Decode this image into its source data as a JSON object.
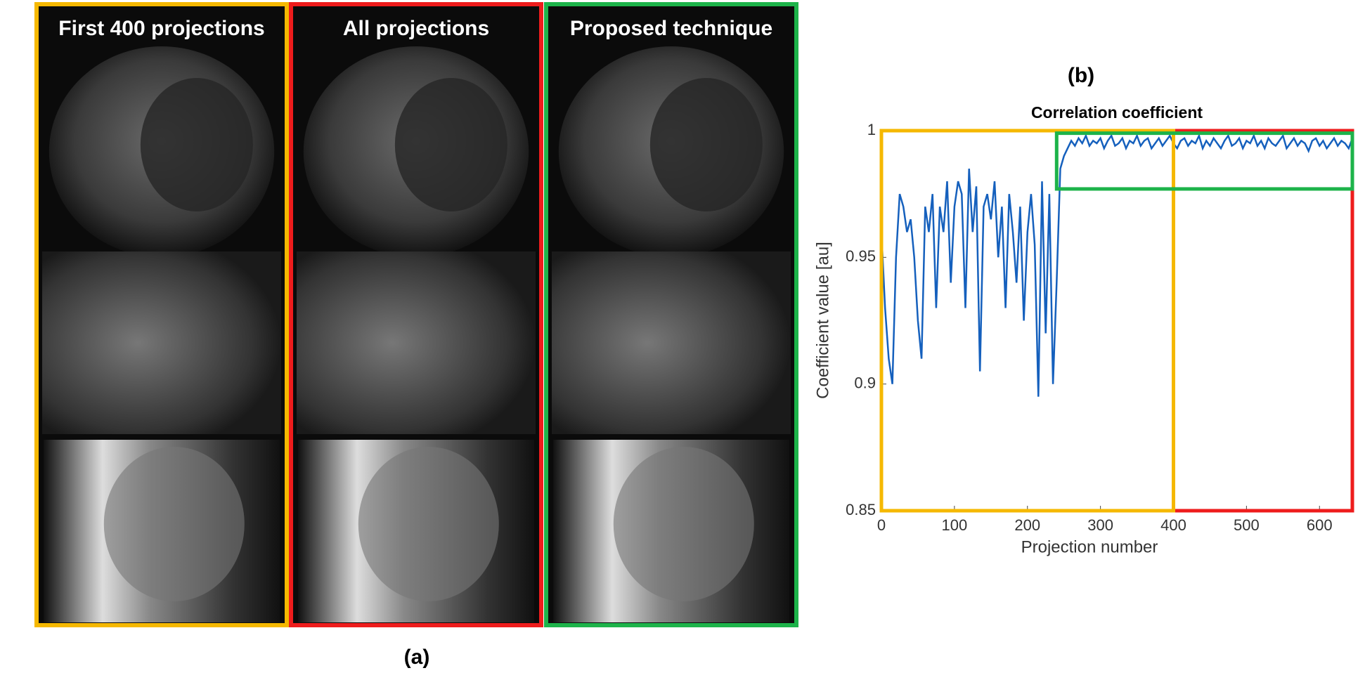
{
  "panels": [
    {
      "title": "First 400 projections",
      "color": "#f5b800"
    },
    {
      "title": "All projections",
      "color": "#ee1c1c"
    },
    {
      "title": "Proposed technique",
      "color": "#1db34a"
    }
  ],
  "label_a": "(a)",
  "label_b": "(b)",
  "chart_data": {
    "type": "line",
    "title": "Correlation coefficient",
    "xlabel": "Projection number",
    "ylabel": "Coefficient value [au]",
    "color": "#1560bd",
    "xlim": [
      0,
      645
    ],
    "xticks": [
      0,
      100,
      200,
      300,
      400,
      500,
      600
    ],
    "ylim": [
      0.85,
      1
    ],
    "yticks": [
      0.85,
      0.9,
      0.95,
      1
    ],
    "x": [
      0,
      5,
      10,
      15,
      20,
      25,
      30,
      35,
      40,
      45,
      50,
      55,
      60,
      65,
      70,
      75,
      80,
      85,
      90,
      95,
      100,
      105,
      110,
      115,
      120,
      125,
      130,
      135,
      140,
      145,
      150,
      155,
      160,
      165,
      170,
      175,
      180,
      185,
      190,
      195,
      200,
      205,
      210,
      215,
      220,
      225,
      230,
      235,
      240,
      245,
      250,
      255,
      260,
      265,
      270,
      275,
      280,
      285,
      290,
      295,
      300,
      305,
      310,
      315,
      320,
      325,
      330,
      335,
      340,
      345,
      350,
      355,
      360,
      365,
      370,
      375,
      380,
      385,
      390,
      395,
      400,
      405,
      410,
      415,
      420,
      425,
      430,
      435,
      440,
      445,
      450,
      455,
      460,
      465,
      470,
      475,
      480,
      485,
      490,
      495,
      500,
      505,
      510,
      515,
      520,
      525,
      530,
      535,
      540,
      545,
      550,
      555,
      560,
      565,
      570,
      575,
      580,
      585,
      590,
      595,
      600,
      605,
      610,
      615,
      620,
      625,
      630,
      635,
      640,
      645
    ],
    "values": [
      0.96,
      0.93,
      0.91,
      0.9,
      0.95,
      0.975,
      0.97,
      0.96,
      0.965,
      0.95,
      0.925,
      0.91,
      0.97,
      0.96,
      0.975,
      0.93,
      0.97,
      0.96,
      0.98,
      0.94,
      0.97,
      0.98,
      0.975,
      0.93,
      0.985,
      0.96,
      0.978,
      0.905,
      0.97,
      0.975,
      0.965,
      0.98,
      0.95,
      0.97,
      0.93,
      0.975,
      0.96,
      0.94,
      0.97,
      0.925,
      0.96,
      0.975,
      0.955,
      0.895,
      0.98,
      0.92,
      0.975,
      0.9,
      0.94,
      0.985,
      0.99,
      0.993,
      0.996,
      0.994,
      0.997,
      0.995,
      0.998,
      0.994,
      0.996,
      0.995,
      0.997,
      0.993,
      0.996,
      0.998,
      0.994,
      0.995,
      0.997,
      0.993,
      0.996,
      0.995,
      0.998,
      0.994,
      0.996,
      0.997,
      0.993,
      0.995,
      0.997,
      0.994,
      0.996,
      0.998,
      0.995,
      0.993,
      0.996,
      0.997,
      0.994,
      0.996,
      0.995,
      0.998,
      0.993,
      0.996,
      0.994,
      0.997,
      0.995,
      0.993,
      0.996,
      0.998,
      0.994,
      0.995,
      0.997,
      0.993,
      0.996,
      0.995,
      0.998,
      0.994,
      0.996,
      0.993,
      0.997,
      0.995,
      0.994,
      0.996,
      0.998,
      0.993,
      0.995,
      0.997,
      0.994,
      0.996,
      0.995,
      0.992,
      0.996,
      0.997,
      0.994,
      0.996,
      0.993,
      0.995,
      0.997,
      0.994,
      0.996,
      0.995,
      0.993,
      0.997
    ],
    "regions": [
      {
        "color": "#ee1c1c",
        "x": [
          0,
          645
        ],
        "y": [
          0.85,
          1
        ]
      },
      {
        "color": "#f5b800",
        "x": [
          0,
          400
        ],
        "y": [
          0.85,
          1
        ]
      },
      {
        "color": "#1db34a",
        "x": [
          240,
          645
        ],
        "y": [
          0.977,
          0.999
        ]
      }
    ]
  }
}
